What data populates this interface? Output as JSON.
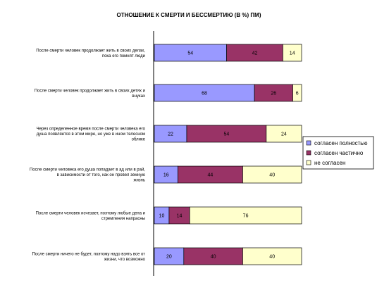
{
  "chart_data": {
    "type": "bar",
    "orientation": "horizontal",
    "stacked": true,
    "percent": true,
    "title": "ОТНОШЕНИЕ К СМЕРТИ И БЕССМЕРТИЮ (В %) ПМ)",
    "categories": [
      [
        "После смерти человек продолжает жить в своих делах,",
        "пока его помнят люди"
      ],
      [
        "После смерти человек продолжает жить в своих детях и",
        "внуках"
      ],
      [
        "Через определенное время после смерти человека его",
        "душа появляется в этом мире, но уже в ином телесном",
        "облике"
      ],
      [
        "После смерти человека его душа попадает в ад или в рай,",
        "в зависимости от того, как он провел земную",
        "жизнь"
      ],
      [
        "После смерти человек исчезает, поэтому любые дела и",
        "стремления напрасны"
      ],
      [
        "После смерти ничего не будет, поэтому надо взять все от",
        "жизни, что возможно"
      ]
    ],
    "series": [
      {
        "name": "согласен полностью",
        "color": "#9999ff",
        "values": [
          54,
          68,
          22,
          16,
          10,
          20
        ]
      },
      {
        "name": "согласен частично",
        "color": "#993366",
        "values": [
          42,
          26,
          54,
          44,
          14,
          40
        ]
      },
      {
        "name": "не согласен",
        "color": "#ffffcc",
        "values": [
          14,
          6,
          24,
          40,
          76,
          40
        ]
      }
    ],
    "legend_position": "right",
    "grid": false
  }
}
